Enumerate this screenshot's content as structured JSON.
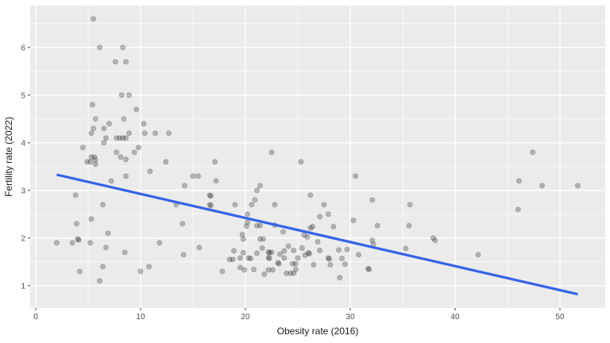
{
  "chart_data": {
    "type": "scatter",
    "title": "",
    "xlabel": "Obesity rate (2016)",
    "ylabel": "Fertility rate (2022)",
    "x_ticks": [
      0,
      10,
      20,
      30,
      40,
      50
    ],
    "x_minor_ticks": [
      5,
      15,
      25,
      35,
      45
    ],
    "y_ticks": [
      1,
      2,
      3,
      4,
      5,
      6
    ],
    "y_minor_ticks": [
      1.5,
      2.5,
      3.5,
      4.5,
      5.5,
      6.5
    ],
    "xlim": [
      -0.53,
      54.32
    ],
    "ylim": [
      0.53,
      6.88
    ],
    "grid": true,
    "legend_position": "none",
    "colors": {
      "panel_bg": "#EBEBEB",
      "grid_major": "#FFFFFF",
      "grid_minor": "#FFFFFF",
      "point_fill": "rgba(25,25,25,0.27)",
      "point_stroke": "rgba(25,25,25,0.20)",
      "trend_line": "#3563E8",
      "tick_mark": "#333333",
      "tick_text": "#4D4D4D",
      "title_text": "#1a1a1a"
    },
    "regression_line": {
      "x1": 2.0,
      "y1": 3.33,
      "x2": 51.7,
      "y2": 0.82
    },
    "points": [
      [
        5.5,
        6.6
      ],
      [
        6.1,
        6.0
      ],
      [
        8.3,
        6.0
      ],
      [
        7.6,
        5.7
      ],
      [
        8.6,
        5.7
      ],
      [
        8.2,
        5.0
      ],
      [
        8.9,
        5.0
      ],
      [
        5.4,
        4.8
      ],
      [
        9.6,
        4.7
      ],
      [
        5.7,
        4.5
      ],
      [
        8.4,
        4.5
      ],
      [
        7.0,
        4.4
      ],
      [
        10.3,
        4.4
      ],
      [
        5.5,
        4.3
      ],
      [
        6.5,
        4.3
      ],
      [
        5.3,
        4.2
      ],
      [
        10.4,
        4.2
      ],
      [
        11.4,
        4.2
      ],
      [
        12.7,
        4.2
      ],
      [
        8.9,
        4.2
      ],
      [
        6.7,
        4.1
      ],
      [
        7.7,
        4.1
      ],
      [
        8.0,
        4.1
      ],
      [
        8.3,
        4.1
      ],
      [
        8.6,
        4.1
      ],
      [
        6.5,
        4.0
      ],
      [
        4.5,
        3.9
      ],
      [
        9.8,
        3.9
      ],
      [
        7.7,
        3.8
      ],
      [
        9.4,
        3.8
      ],
      [
        8.1,
        3.7
      ],
      [
        5.3,
        3.7
      ],
      [
        5.6,
        3.7
      ],
      [
        22.5,
        3.8
      ],
      [
        47.4,
        3.8
      ],
      [
        4.9,
        3.6
      ],
      [
        5.2,
        3.6
      ],
      [
        5.7,
        3.64
      ],
      [
        5.7,
        3.55
      ],
      [
        8.6,
        3.65
      ],
      [
        12.4,
        3.6
      ],
      [
        17.1,
        3.6
      ],
      [
        8.6,
        3.3
      ],
      [
        10.9,
        3.4
      ],
      [
        7.2,
        3.2
      ],
      [
        15.0,
        3.3
      ],
      [
        15.5,
        3.3
      ],
      [
        17.2,
        3.2
      ],
      [
        14.2,
        3.1
      ],
      [
        3.8,
        2.9
      ],
      [
        16.6,
        2.9
      ],
      [
        16.7,
        2.88
      ],
      [
        13.4,
        2.7
      ],
      [
        16.6,
        2.7
      ],
      [
        16.7,
        2.68
      ],
      [
        6.4,
        2.7
      ],
      [
        5.3,
        2.4
      ],
      [
        3.9,
        2.3
      ],
      [
        14.0,
        2.3
      ],
      [
        6.9,
        2.1
      ],
      [
        4.0,
        1.98
      ],
      [
        4.1,
        1.96
      ],
      [
        2.0,
        1.9
      ],
      [
        3.5,
        1.9
      ],
      [
        5.2,
        1.9
      ],
      [
        11.8,
        1.9
      ],
      [
        6.7,
        1.8
      ],
      [
        15.6,
        1.8
      ],
      [
        14.1,
        1.65
      ],
      [
        8.5,
        1.7
      ],
      [
        6.4,
        1.4
      ],
      [
        10.8,
        1.4
      ],
      [
        4.2,
        1.3
      ],
      [
        10.0,
        1.3
      ],
      [
        17.8,
        1.3
      ],
      [
        6.1,
        1.1
      ],
      [
        25.3,
        3.6
      ],
      [
        30.5,
        3.3
      ],
      [
        21.4,
        3.1
      ],
      [
        21.1,
        3.0
      ],
      [
        20.9,
        2.8
      ],
      [
        26.2,
        2.9
      ],
      [
        32.1,
        2.8
      ],
      [
        19.0,
        2.7
      ],
      [
        20.6,
        2.7
      ],
      [
        22.8,
        2.7
      ],
      [
        27.5,
        2.7
      ],
      [
        35.7,
        2.7
      ],
      [
        27.9,
        2.5
      ],
      [
        20.2,
        2.5
      ],
      [
        27.1,
        2.45
      ],
      [
        20.2,
        2.33
      ],
      [
        20.1,
        2.25
      ],
      [
        21.1,
        2.26
      ],
      [
        21.4,
        2.26
      ],
      [
        22.8,
        2.27
      ],
      [
        26.4,
        2.24
      ],
      [
        30.3,
        2.37
      ],
      [
        32.6,
        2.26
      ],
      [
        35.6,
        2.26
      ],
      [
        28.4,
        2.24
      ],
      [
        23.6,
        2.13
      ],
      [
        26.2,
        2.21
      ],
      [
        25.6,
        2.06
      ],
      [
        19.7,
        2.07
      ],
      [
        32.1,
        1.95
      ],
      [
        32.2,
        1.87
      ],
      [
        19.8,
        1.98
      ],
      [
        21.4,
        1.98
      ],
      [
        21.7,
        1.98
      ],
      [
        25.9,
        2.02
      ],
      [
        26.9,
        1.92
      ],
      [
        24.1,
        1.83
      ],
      [
        21.6,
        1.79
      ],
      [
        18.9,
        1.73
      ],
      [
        19.8,
        1.69
      ],
      [
        21.1,
        1.68
      ],
      [
        22.2,
        1.71
      ],
      [
        22.3,
        1.69
      ],
      [
        22.5,
        1.7
      ],
      [
        23.3,
        1.66
      ],
      [
        23.7,
        1.73
      ],
      [
        24.6,
        1.74
      ],
      [
        25.4,
        1.79
      ],
      [
        26.0,
        1.69
      ],
      [
        26.1,
        1.67
      ],
      [
        27.1,
        1.74
      ],
      [
        28.9,
        1.75
      ],
      [
        29.7,
        1.76
      ],
      [
        35.3,
        1.78
      ],
      [
        18.5,
        1.55
      ],
      [
        18.8,
        1.55
      ],
      [
        19.5,
        1.58
      ],
      [
        20.3,
        1.58
      ],
      [
        20.5,
        1.57
      ],
      [
        22.2,
        1.59
      ],
      [
        22.3,
        1.57
      ],
      [
        23.1,
        1.48
      ],
      [
        23.2,
        1.46
      ],
      [
        23.7,
        1.58
      ],
      [
        24.5,
        1.46
      ],
      [
        24.8,
        1.46
      ],
      [
        25.0,
        1.58
      ],
      [
        25.7,
        1.64
      ],
      [
        26.5,
        1.44
      ],
      [
        27.9,
        1.58
      ],
      [
        28.0,
        1.56
      ],
      [
        28.1,
        1.44
      ],
      [
        29.2,
        1.57
      ],
      [
        29.5,
        1.45
      ],
      [
        30.8,
        1.65
      ],
      [
        31.7,
        1.36
      ],
      [
        31.8,
        1.34
      ],
      [
        29.0,
        1.17
      ],
      [
        19.5,
        1.38
      ],
      [
        19.9,
        1.33
      ],
      [
        20.8,
        1.34
      ],
      [
        21.8,
        1.24
      ],
      [
        22.2,
        1.33
      ],
      [
        22.6,
        1.33
      ],
      [
        23.9,
        1.26
      ],
      [
        24.3,
        1.26
      ],
      [
        24.6,
        1.26
      ],
      [
        24.8,
        1.34
      ],
      [
        38.1,
        1.95
      ],
      [
        42.2,
        1.65
      ],
      [
        46.0,
        2.6
      ],
      [
        46.1,
        3.2
      ],
      [
        48.3,
        3.1
      ],
      [
        51.7,
        3.1
      ],
      [
        37.9,
        2.0
      ]
    ]
  }
}
